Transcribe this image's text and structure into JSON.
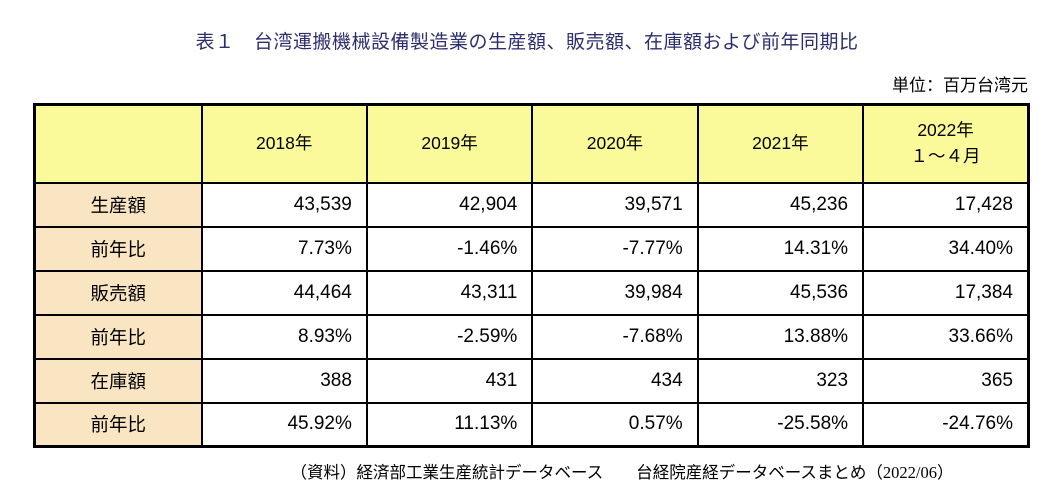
{
  "title": "表１　台湾運搬機械設備製造業の生産額、販売額、在庫額および前年同期比",
  "unit_label": "単位：百万台湾元",
  "table": {
    "columns": [
      {
        "label": "2018年"
      },
      {
        "label": "2019年"
      },
      {
        "label": "2020年"
      },
      {
        "label": "2021年"
      },
      {
        "label": "2022年",
        "sublabel": "１～４月"
      }
    ],
    "rows": [
      {
        "label": "生産額",
        "values": [
          "43,539",
          "42,904",
          "39,571",
          "45,236",
          "17,428"
        ]
      },
      {
        "label": "前年比",
        "values": [
          "7.73%",
          "-1.46%",
          "-7.77%",
          "14.31%",
          "34.40%"
        ]
      },
      {
        "label": "販売額",
        "values": [
          "44,464",
          "43,311",
          "39,984",
          "45,536",
          "17,384"
        ]
      },
      {
        "label": "前年比",
        "values": [
          "8.93%",
          "-2.59%",
          "-7.68%",
          "13.88%",
          "33.66%"
        ]
      },
      {
        "label": "在庫額",
        "values": [
          "388",
          "431",
          "434",
          "323",
          "365"
        ]
      },
      {
        "label": "前年比",
        "values": [
          "45.92%",
          "11.13%",
          "0.57%",
          "-25.58%",
          "-24.76%"
        ]
      }
    ]
  },
  "source_note": "（資料）経済部工業生産統計データベース　　台経院産経データベースまとめ（2022/06）",
  "colors": {
    "header_bg": "#FAFA9B",
    "row_label_bg": "#FAE5C2",
    "title_text": "#2E2E6E",
    "border": "#000000",
    "background": "#FFFFFF"
  }
}
